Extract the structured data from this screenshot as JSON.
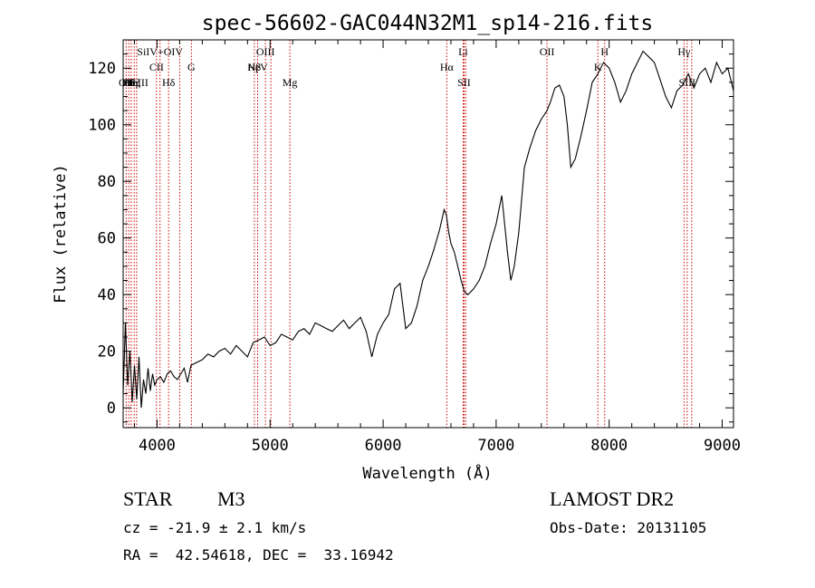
{
  "chart_data": {
    "type": "line",
    "title": "spec-56602-GAC044N32M1_sp14-216.fits",
    "xlabel": "Wavelength (Å)",
    "ylabel": "Flux (relative)",
    "xlim": [
      3700,
      9100
    ],
    "ylim": [
      -7,
      130
    ],
    "xticks": [
      4000,
      5000,
      6000,
      7000,
      8000,
      9000
    ],
    "yticks": [
      0,
      20,
      40,
      60,
      80,
      100,
      120
    ],
    "grid": false,
    "line_color": "#000000",
    "marker_color": "#cc0000",
    "series": [
      {
        "x": [
          3700,
          3720,
          3740,
          3760,
          3780,
          3800,
          3820,
          3840,
          3860,
          3880,
          3900,
          3920,
          3940,
          3960,
          3980,
          4000,
          4030,
          4060,
          4090,
          4120,
          4150,
          4180,
          4210,
          4240,
          4270,
          4300,
          4350,
          4400,
          4450,
          4500,
          4550,
          4600,
          4650,
          4700,
          4750,
          4800,
          4850,
          4900,
          4950,
          5000,
          5050,
          5100,
          5150,
          5200,
          5250,
          5300,
          5350,
          5400,
          5450,
          5500,
          5550,
          5600,
          5650,
          5700,
          5750,
          5800,
          5850,
          5900,
          5950,
          6000,
          6050,
          6100,
          6150,
          6200,
          6250,
          6300,
          6350,
          6400,
          6450,
          6500,
          6540,
          6560,
          6580,
          6600,
          6630,
          6660,
          6690,
          6720,
          6750,
          6800,
          6850,
          6900,
          6950,
          7000,
          7050,
          7100,
          7130,
          7160,
          7200,
          7250,
          7300,
          7350,
          7400,
          7450,
          7480,
          7520,
          7560,
          7600,
          7630,
          7660,
          7700,
          7750,
          7800,
          7850,
          7900,
          7950,
          8000,
          8050,
          8100,
          8150,
          8200,
          8250,
          8300,
          8350,
          8400,
          8450,
          8500,
          8550,
          8600,
          8650,
          8700,
          8750,
          8800,
          8850,
          8900,
          8950,
          9000,
          9050,
          9100
        ],
        "y": [
          5,
          30,
          8,
          20,
          2,
          15,
          3,
          18,
          0,
          10,
          5,
          14,
          6,
          12,
          8,
          10,
          11,
          9,
          12,
          13,
          11,
          10,
          12,
          14,
          9,
          15,
          16,
          17,
          19,
          18,
          20,
          21,
          19,
          22,
          20,
          18,
          23,
          24,
          25,
          22,
          23,
          26,
          25,
          24,
          27,
          28,
          26,
          30,
          29,
          28,
          27,
          29,
          31,
          28,
          30,
          32,
          27,
          18,
          26,
          30,
          33,
          42,
          44,
          28,
          30,
          36,
          45,
          50,
          56,
          63,
          70,
          68,
          62,
          58,
          55,
          50,
          45,
          41,
          40,
          42,
          45,
          50,
          58,
          65,
          75,
          55,
          45,
          50,
          62,
          85,
          92,
          98,
          102,
          105,
          108,
          113,
          114,
          110,
          100,
          85,
          88,
          96,
          105,
          115,
          118,
          122,
          120,
          115,
          108,
          112,
          118,
          122,
          126,
          124,
          122,
          116,
          110,
          106,
          112,
          114,
          118,
          113,
          118,
          120,
          115,
          122,
          118,
          120,
          112
        ]
      }
    ],
    "line_markers": [
      {
        "x": 3727,
        "label": "OII",
        "row": "low"
      },
      {
        "x": 3750,
        "label": "Hθ",
        "row": "low"
      },
      {
        "x": 3771,
        "label": "Hη",
        "row": "low"
      },
      {
        "x": 3798,
        "label": "Hζ",
        "row": "low"
      },
      {
        "x": 3819,
        "label": "NeIII",
        "row": "low"
      },
      {
        "x": 3995,
        "label": "CII",
        "row": "mid"
      },
      {
        "x": 4026,
        "label": "SiIV+OIV",
        "row": "top"
      },
      {
        "x": 4102,
        "label": "Hδ",
        "row": "low"
      },
      {
        "x": 4200,
        "label": "",
        "row": "none"
      },
      {
        "x": 4304,
        "label": "G",
        "row": "mid"
      },
      {
        "x": 4861,
        "label": "Hβ",
        "row": "mid"
      },
      {
        "x": 4890,
        "label": "NeV",
        "row": "mid"
      },
      {
        "x": 4959,
        "label": "OIII",
        "row": "top"
      },
      {
        "x": 5007,
        "label": "",
        "row": "none"
      },
      {
        "x": 5175,
        "label": "Mg",
        "row": "low"
      },
      {
        "x": 6563,
        "label": "Hα",
        "row": "mid"
      },
      {
        "x": 6708,
        "label": "Li",
        "row": "top"
      },
      {
        "x": 6716,
        "label": "SII",
        "row": "low"
      },
      {
        "x": 6731,
        "label": "",
        "row": "none"
      },
      {
        "x": 7450,
        "label": "OII",
        "row": "top"
      },
      {
        "x": 7900,
        "label": "K",
        "row": "mid"
      },
      {
        "x": 7960,
        "label": "H",
        "row": "top"
      },
      {
        "x": 8662,
        "label": "Hγ",
        "row": "top"
      },
      {
        "x": 8690,
        "label": "SIII",
        "row": "low"
      },
      {
        "x": 8730,
        "label": "",
        "row": "none"
      }
    ]
  },
  "footer": {
    "object_type": "STAR",
    "subclass": "M3",
    "redshift": "cz = -21.9 ± 2.1 km/s",
    "coords": "RA =  42.54618, DEC =  33.16942",
    "survey": "LAMOST DR2",
    "obs_date": "Obs-Date: 20131105"
  }
}
